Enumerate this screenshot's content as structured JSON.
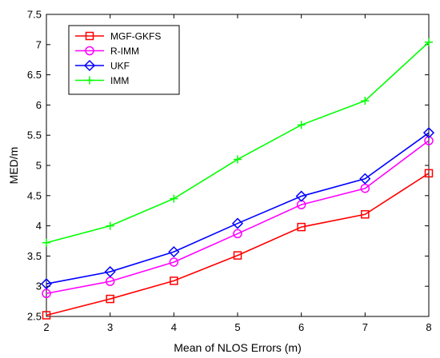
{
  "chart_data": {
    "type": "line",
    "xlabel": "Mean of NLOS Errors (m)",
    "ylabel": "MED/m",
    "xlim": [
      2,
      8
    ],
    "ylim": [
      2.5,
      7.5
    ],
    "x_ticks": [
      "2",
      "3",
      "4",
      "5",
      "6",
      "7",
      "8"
    ],
    "y_ticks": [
      "2.5",
      "3",
      "3.5",
      "4",
      "4.5",
      "5",
      "5.5",
      "6",
      "6.5",
      "7",
      "7.5"
    ],
    "grid": false,
    "legend_position": "top-left",
    "x": [
      2,
      3,
      4,
      5,
      6,
      7,
      8
    ],
    "series": [
      {
        "name": "MGF-GKFS",
        "color": "#ff0000",
        "marker": "square",
        "values": [
          2.52,
          2.79,
          3.09,
          3.51,
          3.98,
          4.19,
          4.87
        ]
      },
      {
        "name": "R-IMM",
        "color": "#ff00ff",
        "marker": "circle",
        "values": [
          2.88,
          3.08,
          3.4,
          3.87,
          4.35,
          4.62,
          5.41
        ]
      },
      {
        "name": "UKF",
        "color": "#0000ff",
        "marker": "diamond",
        "values": [
          3.04,
          3.24,
          3.57,
          4.04,
          4.49,
          4.78,
          5.54
        ]
      },
      {
        "name": "IMM",
        "color": "#00ff00",
        "marker": "plus",
        "values": [
          3.72,
          4.0,
          4.45,
          5.1,
          5.67,
          6.07,
          7.04
        ]
      }
    ]
  }
}
